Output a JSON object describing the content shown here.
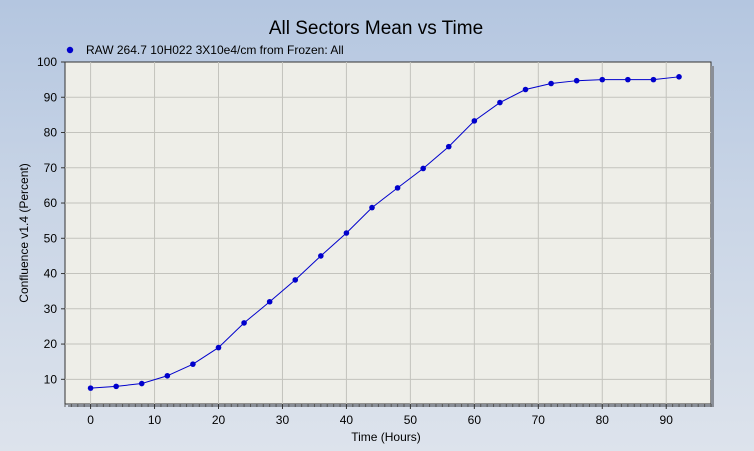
{
  "chart_data": {
    "type": "line",
    "title": "All Sectors Mean vs Time",
    "xlabel": "Time (Hours)",
    "ylabel": "Confluence v1.4 (Percent)",
    "xlim": [
      -4,
      97
    ],
    "ylim": [
      3,
      100
    ],
    "xticks": [
      0,
      10,
      20,
      30,
      40,
      50,
      60,
      70,
      80,
      90
    ],
    "yticks": [
      10,
      20,
      30,
      40,
      50,
      60,
      70,
      80,
      90,
      100
    ],
    "grid": true,
    "legend_position": "top-left",
    "series": [
      {
        "name": "RAW 264.7 10H022 3X10e4/cm from Frozen: All",
        "color": "#0000cc",
        "x": [
          0,
          4,
          8,
          12,
          16,
          20,
          24,
          28,
          32,
          36,
          40,
          44,
          48,
          52,
          56,
          60,
          64,
          68,
          72,
          76,
          80,
          84,
          88,
          92
        ],
        "y": [
          7.5,
          8.0,
          8.8,
          11.0,
          14.3,
          19.0,
          26.0,
          32.0,
          38.2,
          45.0,
          51.5,
          58.7,
          64.3,
          69.8,
          76.0,
          83.3,
          88.5,
          92.2,
          93.9,
          94.7,
          95.0,
          95.0,
          95.0,
          95.8
        ]
      }
    ]
  }
}
